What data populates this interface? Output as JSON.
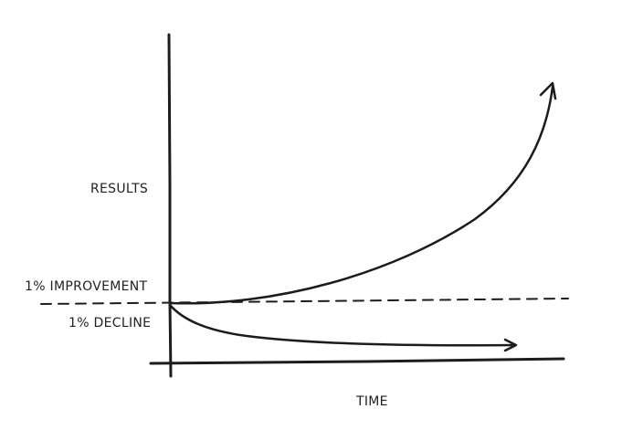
{
  "labels": {
    "y_axis": "RESULTS",
    "x_axis": "TIME",
    "improvement": "1% IMPROVEMENT",
    "decline": "1% DECLINE"
  },
  "colors": {
    "ink": "#1c1c1c",
    "background": "#ffffff"
  }
}
